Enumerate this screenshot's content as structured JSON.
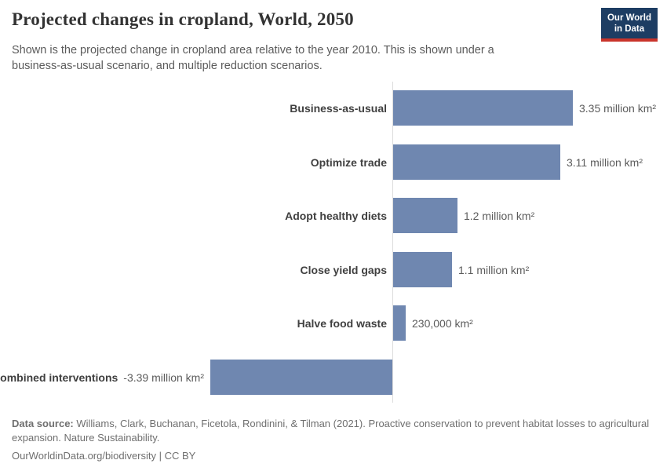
{
  "header": {
    "logo": {
      "line1": "Our World",
      "line2": "in Data"
    }
  },
  "chart_data": {
    "type": "bar",
    "orientation": "horizontal",
    "title": "Projected changes in cropland, World, 2050",
    "subtitle": "Shown is the projected change in cropland area relative to the year 2010. This is shown under a business-as-usual scenario, and multiple reduction scenarios.",
    "unit": "million km²",
    "categories": [
      "Business-as-usual",
      "Optimize trade",
      "Adopt healthy diets",
      "Close yield gaps",
      "Halve food waste",
      "Combined interventions"
    ],
    "values": [
      3.35,
      3.11,
      1.2,
      1.1,
      0.23,
      -3.39
    ],
    "value_labels": [
      "3.35 million km²",
      "3.11 million km²",
      "1.2 million km²",
      "1.1 million km²",
      "230,000 km²",
      "-3.39 million km²"
    ],
    "xlim": [
      -3.39,
      3.35
    ],
    "zero_axis": true,
    "grid": false,
    "legend": false,
    "bar_color": "#6f87b0",
    "axis_color": "#dcdcdc"
  },
  "footer": {
    "source_label": "Data source:",
    "source_text": " Williams, Clark, Buchanan, Ficetola, Rondinini, & Tilman (2021). Proactive conservation to prevent habitat losses to agricultural expansion. Nature Sustainability.",
    "link_text": "OurWorldinData.org/biodiversity | CC BY"
  }
}
